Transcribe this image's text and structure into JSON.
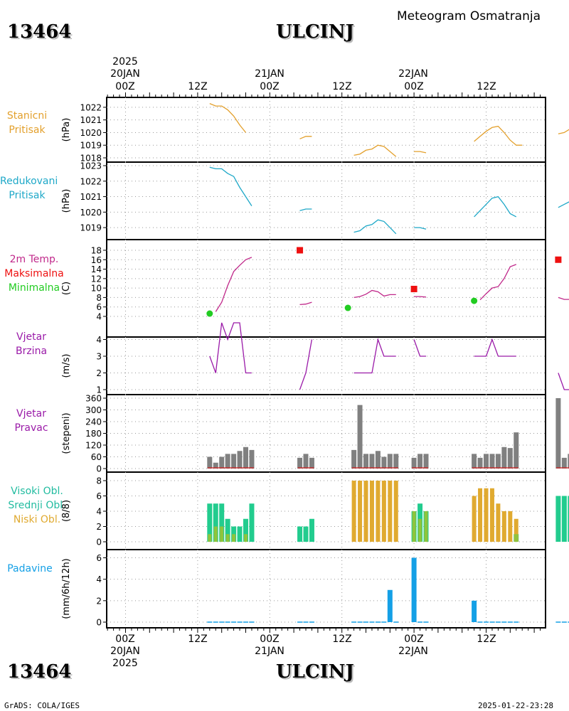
{
  "header": {
    "station_id": "13464",
    "station_name": "ULCINJ",
    "product": "Meteogram Osmatranja"
  },
  "footer": {
    "station_id": "13464",
    "station_name": "ULCINJ",
    "credit": "GrADS: COLA/IGES",
    "timestamp": "2025-01-22-23:28"
  },
  "time_axis": {
    "top_year": "2025",
    "top_dates": [
      "20JAN",
      "21JAN",
      "22JAN"
    ],
    "top_hours": [
      "00Z",
      "12Z",
      "00Z",
      "12Z",
      "00Z",
      "12Z"
    ],
    "bottom_hours": [
      "00Z",
      "12Z",
      "00Z",
      "12Z",
      "00Z",
      "12Z"
    ],
    "bottom_dates": [
      "20JAN",
      "21JAN",
      "22JAN"
    ],
    "bottom_year": "2025"
  },
  "panel_labels": {
    "p1": [
      "Stanicni",
      "Pritisak"
    ],
    "p2": [
      "Redukovani",
      "Pritisak"
    ],
    "p3": [
      "2m Temp.",
      "Maksimalna",
      "Minimalna"
    ],
    "p4": [
      "Vjetar",
      "Brzina"
    ],
    "p5": [
      "Vjetar",
      "Pravac"
    ],
    "p6": [
      "Visoki Obl.",
      "Srednji Obl.",
      "Niski Obl."
    ],
    "p7": [
      "Padavine"
    ]
  },
  "panel_units": {
    "p1": "(hPa)",
    "p2": "(hPa)",
    "p3": "(C)",
    "p4": "(m/s)",
    "p5": "(stepeni)",
    "p6": "(8/8)",
    "p7": "(mm/6h/12h)"
  },
  "colors": {
    "station_pressure": "#e3a02c",
    "reduced_pressure": "#1ea8c8",
    "temperature": "#c0288a",
    "maximum": "#ee1010",
    "minimum": "#22cc22",
    "wind": "#9a1aa8",
    "wind_direction_bar": "#808080",
    "high_cloud": "#22cc8e",
    "mid_cloud": "#8fc43c",
    "low_cloud": "#e0aa30",
    "precipitation": "#14a0e6"
  },
  "chart_data": [
    {
      "type": "line",
      "title": "Stanicni Pritisak",
      "ylabel": "(hPa)",
      "ylim": [
        1018,
        1022.5
      ],
      "yticks": [
        1018,
        1019,
        1020,
        1021,
        1022
      ],
      "segments": [
        [
          [
            14,
            1022.3
          ],
          [
            15,
            1022.1
          ],
          [
            16,
            1022.1
          ],
          [
            17,
            1021.8
          ],
          [
            18,
            1021.3
          ],
          [
            19,
            1020.6
          ],
          [
            20,
            1020.0
          ]
        ],
        [
          [
            29,
            1019.5
          ],
          [
            30,
            1019.7
          ],
          [
            31,
            1019.7
          ]
        ],
        [
          [
            38,
            1018.2
          ],
          [
            39,
            1018.3
          ],
          [
            40,
            1018.6
          ],
          [
            41,
            1018.7
          ],
          [
            42,
            1019.0
          ],
          [
            43,
            1018.9
          ],
          [
            44,
            1018.5
          ],
          [
            45,
            1018.1
          ]
        ],
        [
          [
            48,
            1018.5
          ],
          [
            49,
            1018.5
          ],
          [
            50,
            1018.4
          ]
        ],
        [
          [
            58,
            1019.3
          ],
          [
            59,
            1019.7
          ],
          [
            60,
            1020.1
          ],
          [
            61,
            1020.4
          ],
          [
            62,
            1020.5
          ],
          [
            63,
            1020.0
          ],
          [
            64,
            1019.4
          ],
          [
            65,
            1019.0
          ],
          [
            66,
            1019.0
          ]
        ],
        [
          [
            72,
            1019.9
          ],
          [
            73,
            1020.0
          ],
          [
            74,
            1020.3
          ]
        ]
      ]
    },
    {
      "type": "line",
      "title": "Redukovani Pritisak",
      "ylabel": "(hPa)",
      "ylim": [
        1018.5,
        1023
      ],
      "yticks": [
        1019,
        1020,
        1021,
        1022,
        1023
      ],
      "segments": [
        [
          [
            14,
            1022.9
          ],
          [
            15,
            1022.8
          ],
          [
            16,
            1022.8
          ],
          [
            17,
            1022.5
          ],
          [
            18,
            1022.3
          ],
          [
            19,
            1021.6
          ],
          [
            20,
            1021.0
          ],
          [
            21,
            1020.4
          ]
        ],
        [
          [
            29,
            1020.1
          ],
          [
            30,
            1020.2
          ],
          [
            31,
            1020.2
          ]
        ],
        [
          [
            38,
            1018.7
          ],
          [
            39,
            1018.8
          ],
          [
            40,
            1019.1
          ],
          [
            41,
            1019.2
          ],
          [
            42,
            1019.5
          ],
          [
            43,
            1019.4
          ],
          [
            44,
            1019.0
          ],
          [
            45,
            1018.6
          ]
        ],
        [
          [
            48,
            1019.0
          ],
          [
            49,
            1019.0
          ],
          [
            50,
            1018.9
          ]
        ],
        [
          [
            58,
            1019.7
          ],
          [
            59,
            1020.1
          ],
          [
            60,
            1020.5
          ],
          [
            61,
            1020.9
          ],
          [
            62,
            1021.0
          ],
          [
            63,
            1020.5
          ],
          [
            64,
            1019.9
          ],
          [
            65,
            1019.7
          ]
        ],
        [
          [
            72,
            1020.3
          ],
          [
            73,
            1020.5
          ],
          [
            74,
            1020.7
          ]
        ]
      ]
    },
    {
      "type": "line",
      "title": "2m Temp. / Maksimalna / Minimalna",
      "ylabel": "(C)",
      "ylim": [
        4,
        19.5
      ],
      "yticks": [
        4,
        6,
        8,
        10,
        12,
        14,
        16,
        18
      ],
      "series": [
        {
          "name": "2m Temp.",
          "segments": [
            [
              [
                15,
                5.0
              ],
              [
                16,
                7.0
              ],
              [
                17,
                10.5
              ],
              [
                18,
                13.5
              ],
              [
                19,
                14.8
              ],
              [
                20,
                16.0
              ],
              [
                21,
                16.5
              ]
            ],
            [
              [
                29,
                6.5
              ],
              [
                30,
                6.6
              ],
              [
                31,
                7.0
              ]
            ],
            [
              [
                38,
                8.0
              ],
              [
                39,
                8.2
              ],
              [
                40,
                8.7
              ],
              [
                41,
                9.5
              ],
              [
                42,
                9.2
              ],
              [
                43,
                8.3
              ],
              [
                44,
                8.6
              ],
              [
                45,
                8.6
              ]
            ],
            [
              [
                48,
                8.2
              ],
              [
                49,
                8.2
              ],
              [
                50,
                8.1
              ]
            ],
            [
              [
                59,
                7.5
              ],
              [
                60,
                8.8
              ],
              [
                61,
                10.0
              ],
              [
                62,
                10.3
              ],
              [
                63,
                12.0
              ],
              [
                64,
                14.5
              ],
              [
                65,
                15.0
              ]
            ],
            [
              [
                72,
                8.0
              ],
              [
                73,
                7.6
              ],
              [
                74,
                7.6
              ]
            ]
          ]
        },
        {
          "name": "Maksimalna",
          "points": [
            [
              29,
              18.0
            ],
            [
              48,
              9.8
            ],
            [
              72,
              16.0
            ]
          ]
        },
        {
          "name": "Minimalna",
          "points": [
            [
              14,
              4.6
            ],
            [
              37,
              5.8
            ],
            [
              58,
              7.3
            ]
          ]
        }
      ]
    },
    {
      "type": "line",
      "title": "Vjetar Brzina",
      "ylabel": "(m/s)",
      "ylim": [
        1,
        5
      ],
      "yticks": [
        1,
        2,
        3,
        4,
        5
      ],
      "segments": [
        [
          [
            14,
            3
          ],
          [
            15,
            2
          ],
          [
            16,
            5
          ],
          [
            17,
            4
          ],
          [
            18,
            5
          ],
          [
            19,
            5
          ],
          [
            20,
            2
          ],
          [
            21,
            2
          ]
        ],
        [
          [
            29,
            1
          ],
          [
            30,
            2
          ],
          [
            31,
            4
          ]
        ],
        [
          [
            38,
            2
          ],
          [
            39,
            2
          ],
          [
            40,
            2
          ],
          [
            41,
            2
          ],
          [
            42,
            4
          ],
          [
            43,
            3
          ],
          [
            44,
            3
          ],
          [
            45,
            3
          ]
        ],
        [
          [
            48,
            4
          ],
          [
            49,
            3
          ],
          [
            50,
            3
          ]
        ],
        [
          [
            58,
            3
          ],
          [
            59,
            3
          ],
          [
            60,
            3
          ],
          [
            61,
            4
          ],
          [
            62,
            3
          ],
          [
            63,
            3
          ],
          [
            64,
            3
          ],
          [
            65,
            3
          ]
        ],
        [
          [
            72,
            2
          ],
          [
            73,
            1
          ],
          [
            74,
            1
          ]
        ]
      ]
    },
    {
      "type": "bar",
      "title": "Vjetar Pravac",
      "ylabel": "(stepeni)",
      "ylim": [
        0,
        360
      ],
      "yticks": [
        0,
        60,
        120,
        180,
        240,
        300,
        360
      ],
      "x": [
        14,
        15,
        16,
        17,
        18,
        19,
        20,
        21,
        29,
        30,
        31,
        38,
        39,
        40,
        41,
        42,
        43,
        44,
        45,
        48,
        49,
        50,
        58,
        59,
        60,
        61,
        62,
        63,
        64,
        65,
        72,
        73,
        74
      ],
      "values": [
        60,
        30,
        60,
        75,
        75,
        90,
        110,
        95,
        55,
        75,
        55,
        95,
        325,
        75,
        75,
        90,
        60,
        75,
        75,
        55,
        75,
        75,
        75,
        55,
        75,
        75,
        75,
        110,
        105,
        185,
        360,
        55,
        75
      ]
    },
    {
      "type": "bar",
      "title": "Visoki Obl. / Srednji Obl. / Niski Obl.",
      "ylabel": "(8/8)",
      "ylim": [
        0,
        8
      ],
      "yticks": [
        0,
        2,
        4,
        6,
        8
      ],
      "x": [
        14,
        15,
        16,
        17,
        18,
        19,
        20,
        21,
        29,
        30,
        31,
        38,
        39,
        40,
        41,
        42,
        43,
        44,
        45,
        48,
        49,
        50,
        58,
        59,
        60,
        61,
        62,
        63,
        64,
        65,
        72,
        73,
        74
      ],
      "series": [
        {
          "name": "Visoki Obl.",
          "values": [
            5,
            5,
            5,
            3,
            2,
            2,
            3,
            5,
            2,
            2,
            3,
            0,
            0,
            0,
            0,
            0,
            0,
            0,
            0,
            4,
            5,
            4,
            0,
            0,
            0,
            0,
            0,
            0,
            0,
            1,
            6,
            6,
            6
          ]
        },
        {
          "name": "Srednji Obl.",
          "values": [
            1,
            2,
            2,
            1,
            1,
            0,
            1,
            0,
            0,
            0,
            0,
            0,
            0,
            0,
            0,
            0,
            0,
            0,
            0,
            4,
            3,
            4,
            0,
            0,
            0,
            0,
            0,
            0,
            0,
            1,
            0,
            0,
            0
          ]
        },
        {
          "name": "Niski Obl.",
          "values": [
            0,
            0,
            0,
            0,
            0,
            0,
            0,
            0,
            0,
            0,
            0,
            8,
            8,
            8,
            8,
            8,
            8,
            8,
            8,
            0,
            0,
            0,
            6,
            7,
            7,
            7,
            5,
            4,
            4,
            3,
            0,
            0,
            0
          ]
        }
      ]
    },
    {
      "type": "bar",
      "title": "Padavine",
      "ylabel": "(mm/6h/12h)",
      "ylim": [
        0,
        6.3
      ],
      "yticks": [
        0,
        2,
        4,
        6
      ],
      "x": [
        14,
        15,
        16,
        17,
        18,
        19,
        20,
        21,
        29,
        30,
        31,
        38,
        39,
        40,
        41,
        42,
        43,
        44,
        45,
        48,
        49,
        50,
        58,
        59,
        60,
        61,
        62,
        63,
        64,
        65,
        72,
        73,
        74
      ],
      "values": [
        0.05,
        0.05,
        0.05,
        0.05,
        0.05,
        0.05,
        0.05,
        0.05,
        0.05,
        0.05,
        0.05,
        0.05,
        0.05,
        0.05,
        0.05,
        0.05,
        0.05,
        3.0,
        0.05,
        6.0,
        0.05,
        0.05,
        2.0,
        0.05,
        0.05,
        0.05,
        0.05,
        0.05,
        0.05,
        0.05,
        0.05,
        0.05,
        0.05
      ]
    }
  ]
}
